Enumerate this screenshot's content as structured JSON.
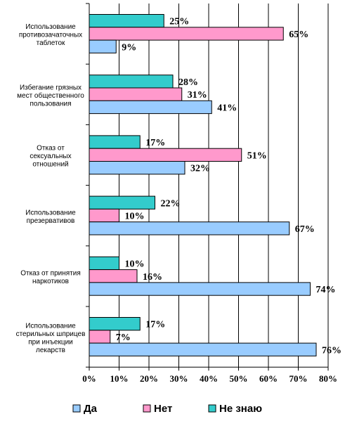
{
  "chart_data": {
    "type": "bar",
    "orientation": "horizontal",
    "categories": [
      [
        "Использование",
        "противозачаточных",
        "таблеток"
      ],
      [
        "Избегание грязных",
        "мест общественного",
        "пользования"
      ],
      [
        "Отказ от",
        "сексуальных",
        "отношений"
      ],
      [
        "Использование",
        "презервативов"
      ],
      [
        "Отказ от принятия",
        "наркотиков"
      ],
      [
        "Использование",
        "стерильных шприцев",
        "при инъекции",
        "лекарств"
      ]
    ],
    "series": [
      {
        "name": "Не знаю",
        "color": "#33CCCC",
        "values": [
          25,
          28,
          17,
          22,
          10,
          17
        ]
      },
      {
        "name": "Нет",
        "color": "#FF99CC",
        "values": [
          65,
          31,
          51,
          10,
          16,
          7
        ]
      },
      {
        "name": "Да",
        "color": "#99CCFF",
        "values": [
          9,
          41,
          32,
          67,
          74,
          76
        ]
      }
    ],
    "value_suffix": "%",
    "xlim": [
      0,
      80
    ],
    "xticks": [
      "0%",
      "10%",
      "20%",
      "30%",
      "40%",
      "50%",
      "60%",
      "70%",
      "80%"
    ],
    "grid": true,
    "legend": {
      "position": "bottom",
      "entries": [
        {
          "label": "Да",
          "color": "#99CCFF"
        },
        {
          "label": "Нет",
          "color": "#FF99CC"
        },
        {
          "label": "Не знаю",
          "color": "#33CCCC"
        }
      ]
    }
  }
}
